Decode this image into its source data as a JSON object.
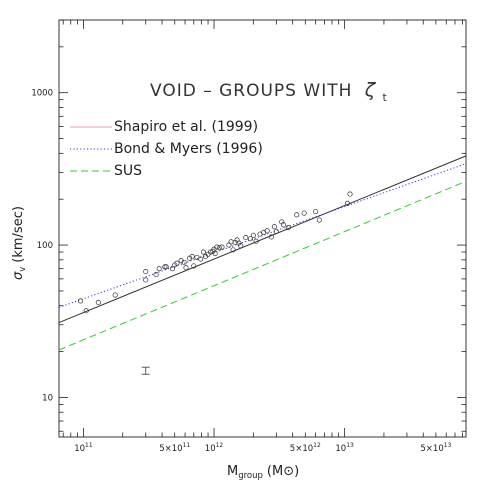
{
  "chart_data": {
    "type": "scatter",
    "title": "",
    "annotation": "VOID – GROUPS WITH",
    "annotation_symbol": "ζ",
    "annotation_subscript": "t",
    "xlabel": "M",
    "xlabel_sub": "group",
    "xlabel_unit": "(M⊙)",
    "ylabel": "σ",
    "ylabel_sub": "v",
    "ylabel_unit": "(km/sec)",
    "x_scale": "log",
    "y_scale": "log",
    "xlim": [
      65000000000.0,
      85000000000000.0
    ],
    "ylim": [
      5.5,
      3000
    ],
    "x_ticklabels": [
      {
        "value": 100000000000.0,
        "mant": "10",
        "exp": "11"
      },
      {
        "value": 500000000000.0,
        "mant": "5×10",
        "exp": "11"
      },
      {
        "value": 1000000000000.0,
        "mant": "10",
        "exp": "12"
      },
      {
        "value": 5000000000000.0,
        "mant": "5×10",
        "exp": "12"
      },
      {
        "value": 10000000000000.0,
        "mant": "10",
        "exp": "13"
      },
      {
        "value": 50000000000000.0,
        "mant": "5×10",
        "exp": "13"
      }
    ],
    "y_ticklabels": [
      {
        "value": 10,
        "label": "10"
      },
      {
        "value": 100,
        "label": "100"
      },
      {
        "value": 1000,
        "label": "1000"
      }
    ],
    "legend_position": "upper-left",
    "series": [
      {
        "name": "Shapiro et al. (1999)",
        "kind": "line",
        "style": "solid",
        "color": "#e8a0a8",
        "plot_color": "#333333",
        "x": [
          65000000000.0,
          85000000000000.0
        ],
        "y": [
          31,
          385
        ]
      },
      {
        "name": "Bond & Myers (1996)",
        "kind": "line",
        "style": "dotted",
        "color": "#3a3ad0",
        "x": [
          65000000000.0,
          85000000000000.0
        ],
        "y": [
          39,
          342
        ]
      },
      {
        "name": "SUS",
        "kind": "line",
        "style": "dashed",
        "color": "#33cc33",
        "x": [
          65000000000.0,
          85000000000000.0
        ],
        "y": [
          20.5,
          262
        ]
      },
      {
        "name": "",
        "kind": "points",
        "color": "#333333",
        "x": [
          95000000000.0,
          105000000000.0,
          130000000000.0,
          175000000000.0,
          300000000000.0,
          300000000000.0,
          360000000000.0,
          380000000000.0,
          420000000000.0,
          430000000000.0,
          480000000000.0,
          500000000000.0,
          520000000000.0,
          560000000000.0,
          590000000000.0,
          610000000000.0,
          650000000000.0,
          680000000000.0,
          700000000000.0,
          740000000000.0,
          790000000000.0,
          830000000000.0,
          860000000000.0,
          900000000000.0,
          940000000000.0,
          980000000000.0,
          1000000000000.0,
          1020000000000.0,
          1050000000000.0,
          1100000000000.0,
          1150000000000.0,
          1300000000000.0,
          1350000000000.0,
          1400000000000.0,
          1450000000000.0,
          1500000000000.0,
          1550000000000.0,
          1600000000000.0,
          1750000000000.0,
          1900000000000.0,
          2000000000000.0,
          2100000000000.0,
          2250000000000.0,
          2400000000000.0,
          2550000000000.0,
          2750000000000.0,
          2900000000000.0,
          3000000000000.0,
          3300000000000.0,
          3400000000000.0,
          3700000000000.0,
          4300000000000.0,
          4900000000000.0,
          6000000000000.0,
          6400000000000.0,
          10500000000000.0,
          11000000000000.0
        ],
        "y": [
          43,
          37,
          42,
          47,
          59,
          67,
          64,
          70,
          72,
          72,
          70,
          74,
          76,
          79,
          77,
          71,
          82,
          84,
          73,
          83,
          81,
          90,
          84,
          87,
          90,
          91,
          94,
          88,
          97,
          96,
          97,
          100,
          105,
          93,
          104,
          108,
          103,
          99,
          112,
          110,
          116,
          106,
          118,
          121,
          124,
          113,
          132,
          123,
          142,
          136,
          130,
          158,
          162,
          166,
          146,
          188,
          216
        ]
      },
      {
        "name": "",
        "kind": "errorbar",
        "color": "#333333",
        "x": [
          300000000000.0
        ],
        "y": [
          15
        ],
        "ylow": [
          14.2
        ],
        "yhigh": [
          15.8
        ]
      }
    ]
  }
}
